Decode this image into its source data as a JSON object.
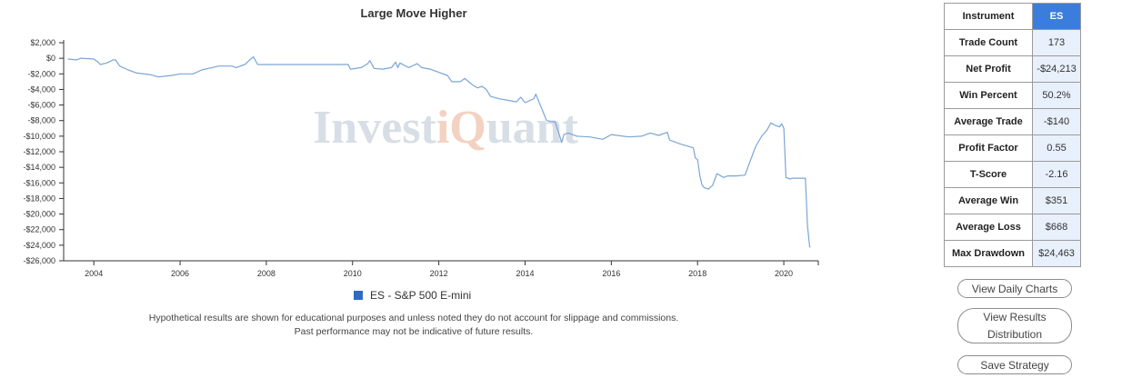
{
  "chart_data": {
    "type": "line",
    "title": "Large Move Higher",
    "xlabel": "",
    "ylabel": "",
    "xlim": [
      2003.3,
      2020.8
    ],
    "ylim": [
      -26000,
      2000
    ],
    "x_ticks": [
      2004,
      2006,
      2008,
      2010,
      2012,
      2014,
      2016,
      2018,
      2020
    ],
    "y_ticks": [
      2000,
      0,
      -2000,
      -4000,
      -6000,
      -8000,
      -10000,
      -12000,
      -14000,
      -16000,
      -18000,
      -20000,
      -22000,
      -24000,
      -26000
    ],
    "y_tick_labels": [
      "$2,000",
      "$0",
      "-$2,000",
      "-$4,000",
      "-$6,000",
      "-$8,000",
      "-$10,000",
      "-$12,000",
      "-$14,000",
      "-$16,000",
      "-$18,000",
      "-$20,000",
      "-$22,000",
      "-$24,000",
      "-$26,000"
    ],
    "grid": false,
    "legend_position": "bottom-center",
    "series": [
      {
        "name": "ES - S&P 500 E-mini",
        "color": "#7aa6d6",
        "x": [
          2003.4,
          2003.6,
          2003.7,
          2004.0,
          2004.1,
          2004.15,
          2004.3,
          2004.45,
          2004.5,
          2004.6,
          2004.8,
          2005.0,
          2005.3,
          2005.5,
          2005.8,
          2006.0,
          2006.3,
          2006.5,
          2006.9,
          2007.2,
          2007.3,
          2007.5,
          2007.7,
          2007.8,
          2008.2,
          2008.6,
          2009.0,
          2009.5,
          2009.9,
          2009.95,
          2010.2,
          2010.35,
          2010.4,
          2010.5,
          2010.7,
          2010.9,
          2011.0,
          2011.05,
          2011.1,
          2011.3,
          2011.5,
          2011.6,
          2011.8,
          2012.0,
          2012.2,
          2012.3,
          2012.5,
          2012.6,
          2012.8,
          2012.9,
          2013.0,
          2013.1,
          2013.2,
          2013.4,
          2013.6,
          2013.8,
          2013.9,
          2014.0,
          2014.2,
          2014.25,
          2014.5,
          2014.7,
          2014.85,
          2014.9,
          2015.0,
          2015.2,
          2015.5,
          2015.8,
          2016.0,
          2016.4,
          2016.7,
          2016.9,
          2017.1,
          2017.3,
          2017.35,
          2017.6,
          2017.9,
          2017.95,
          2018.0,
          2018.05,
          2018.1,
          2018.15,
          2018.25,
          2018.35,
          2018.45,
          2018.6,
          2018.7,
          2018.75,
          2018.9,
          2019.1,
          2019.2,
          2019.3,
          2019.35,
          2019.5,
          2019.6,
          2019.7,
          2019.8,
          2019.9,
          2019.95,
          2020.0,
          2020.05,
          2020.15,
          2020.2,
          2020.3,
          2020.5,
          2020.55,
          2020.6,
          2020.62
        ],
        "y": [
          -100,
          -200,
          0,
          -100,
          -500,
          -800,
          -600,
          -200,
          -200,
          -1000,
          -1500,
          -1900,
          -2100,
          -2400,
          -2200,
          -2000,
          -2000,
          -1500,
          -1000,
          -1000,
          -1200,
          -800,
          200,
          -800,
          -800,
          -800,
          -800,
          -800,
          -800,
          -1400,
          -1200,
          -700,
          -300,
          -1300,
          -1400,
          -1200,
          -500,
          -1200,
          -600,
          -1200,
          -700,
          -1200,
          -1400,
          -1800,
          -2200,
          -3000,
          -3000,
          -2600,
          -3500,
          -3800,
          -3600,
          -4000,
          -4900,
          -5200,
          -5400,
          -5600,
          -5000,
          -5700,
          -5200,
          -4600,
          -8000,
          -8200,
          -10800,
          -9800,
          -9600,
          -10000,
          -10100,
          -10400,
          -9800,
          -10100,
          -10000,
          -9600,
          -9900,
          -9500,
          -10500,
          -11000,
          -11500,
          -12800,
          -13000,
          -15000,
          -16200,
          -16600,
          -16800,
          -16300,
          -14800,
          -15300,
          -15100,
          -15100,
          -15100,
          -15000,
          -13500,
          -12000,
          -11300,
          -9900,
          -9300,
          -8300,
          -8600,
          -8800,
          -8400,
          -9000,
          -15300,
          -15500,
          -15400,
          -15400,
          -15400,
          -21500,
          -24213,
          -24213
        ]
      }
    ]
  },
  "disclaimer": {
    "line1": "Hypothetical results are shown for educational purposes and unless noted they do not account for slippage and commissions.",
    "line2": "Past performance may not be indicative of future results."
  },
  "stats": [
    {
      "label": "Instrument",
      "value": "ES"
    },
    {
      "label": "Trade Count",
      "value": "173"
    },
    {
      "label": "Net Profit",
      "value": "-$24,213"
    },
    {
      "label": "Win Percent",
      "value": "50.2%"
    },
    {
      "label": "Average Trade",
      "value": "-$140"
    },
    {
      "label": "Profit Factor",
      "value": "0.55"
    },
    {
      "label": "T-Score",
      "value": "-2.16"
    },
    {
      "label": "Average Win",
      "value": "$351"
    },
    {
      "label": "Average Loss",
      "value": "$668"
    },
    {
      "label": "Max Drawdown",
      "value": "$24,463"
    }
  ],
  "buttons": {
    "daily_charts": "View Daily Charts",
    "results_distribution_line1": "View Results",
    "results_distribution_line2": "Distribution",
    "save_strategy": "Save Strategy"
  },
  "watermark": {
    "part1": "Invest",
    "part2": "iQ",
    "part3": "uant",
    "color_main": "#d8dee6",
    "color_accent": "#f3d2c2"
  }
}
